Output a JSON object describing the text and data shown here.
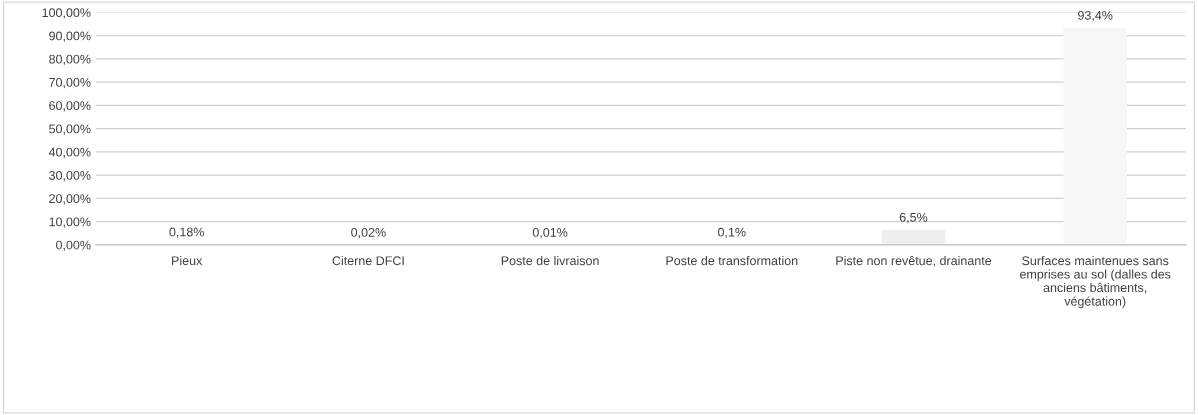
{
  "chart_data": {
    "type": "bar",
    "categories": [
      "Pieux",
      "Citerne DFCI",
      "Poste de livraison",
      "Poste de transformation",
      "Piste non revêtue, drainante",
      "Surfaces maintenues sans emprises au sol (dalles des anciens bâtiments, végétation)"
    ],
    "values": [
      0.18,
      0.02,
      0.01,
      0.1,
      6.5,
      93.4
    ],
    "colors": [
      "#eeeeee",
      "#eeeeee",
      "#eeeeee",
      "#eeeeee",
      "#eeeeee",
      "#f7f7f7"
    ],
    "value_labels": [
      "0,18%",
      "0,02%",
      "0,01%",
      "0,1%",
      "6,5%",
      "93,4%"
    ],
    "ylim": [
      0,
      100
    ],
    "yticks": [
      {
        "value": 0,
        "label": "0,00%"
      },
      {
        "value": 10,
        "label": "10,00%"
      },
      {
        "value": 20,
        "label": "20,00%"
      },
      {
        "value": 30,
        "label": "30,00%"
      },
      {
        "value": 40,
        "label": "40,00%"
      },
      {
        "value": 50,
        "label": "50,00%"
      },
      {
        "value": 60,
        "label": "60,00%"
      },
      {
        "value": 70,
        "label": "70,00%"
      },
      {
        "value": 80,
        "label": "80,00%"
      },
      {
        "value": 90,
        "label": "90,00%"
      },
      {
        "value": 100,
        "label": "100,00%"
      }
    ],
    "grid": "y"
  }
}
